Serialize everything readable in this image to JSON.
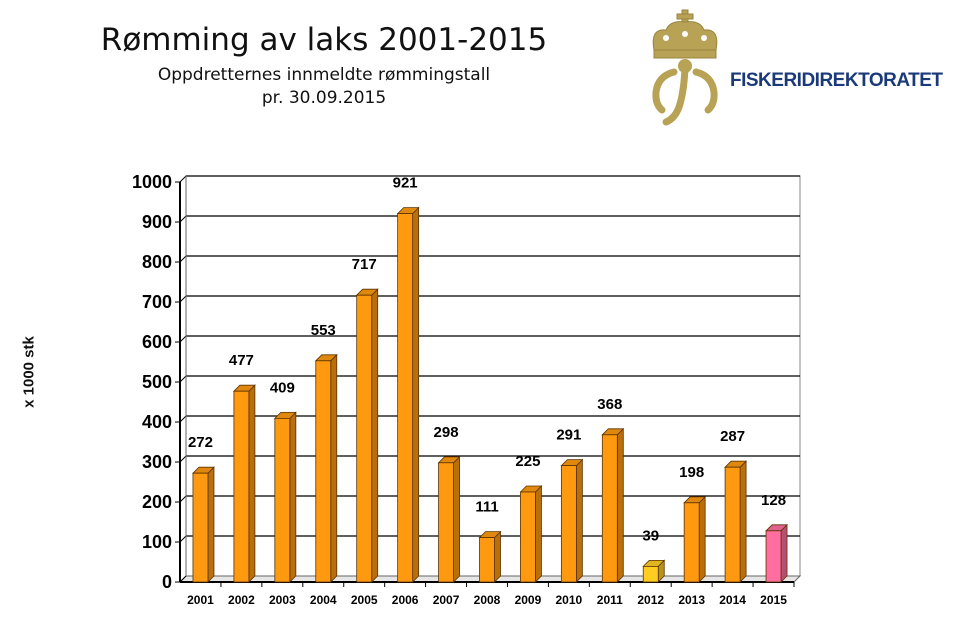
{
  "header": {
    "title": "Rømming av laks 2001-2015",
    "subtitle_line1": "Oppdretternes innmeldte rømmingstall",
    "subtitle_line2": "pr. 30.09.2015"
  },
  "logo": {
    "text": "FISKERIDIREKTORATET",
    "icon": "crown-mermaid-emblem-icon",
    "color_gold": "#b8a255",
    "color_text": "#1b3a7a"
  },
  "chart_data": {
    "type": "bar",
    "categories": [
      "2001",
      "2002",
      "2003",
      "2004",
      "2005",
      "2006",
      "2007",
      "2008",
      "2009",
      "2010",
      "2011",
      "2012",
      "2013",
      "2014",
      "2015"
    ],
    "values": [
      272,
      477,
      409,
      553,
      717,
      921,
      298,
      111,
      225,
      291,
      368,
      39,
      198,
      287,
      128
    ],
    "data_labels": [
      "272",
      "477",
      "409",
      "553",
      "717",
      "921",
      "298",
      "111",
      "225",
      "291",
      "368",
      "39",
      "198",
      "287",
      "128"
    ],
    "bar_colors": [
      "#ff9a10",
      "#ff9a10",
      "#ff9a10",
      "#ff9a10",
      "#ff9a10",
      "#ff9a10",
      "#ff9a10",
      "#ff9a10",
      "#ff9a10",
      "#ff9a10",
      "#ff9a10",
      "#ffcc22",
      "#ff9a10",
      "#ff9a10",
      "#ff6e9e"
    ],
    "ylabel": "x 1000 stk",
    "xlabel": "",
    "ylim": [
      0,
      1000
    ],
    "yticks": [
      0,
      100,
      200,
      300,
      400,
      500,
      600,
      700,
      800,
      900,
      1000
    ],
    "grid": true,
    "legend": "none"
  }
}
